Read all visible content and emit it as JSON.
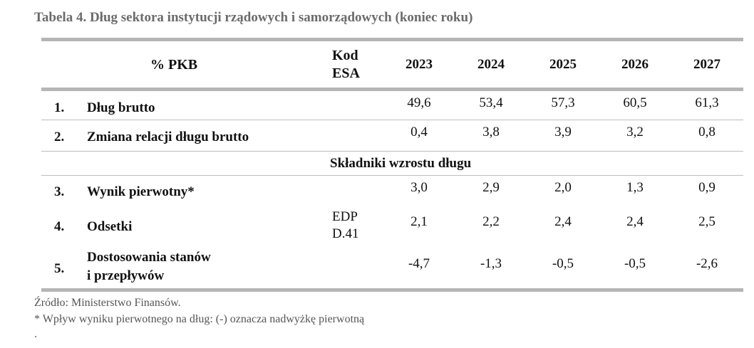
{
  "title": "Tabela 4. Dług sektora instytucji rządowych i samorządowych (koniec roku)",
  "header": {
    "pkb": "% PKB",
    "esa_line1": "Kod",
    "esa_line2": "ESA",
    "years": [
      "2023",
      "2024",
      "2025",
      "2026",
      "2027"
    ]
  },
  "rows": [
    {
      "no": "1.",
      "label": "Dług brutto",
      "esa": "",
      "values": [
        "49,6",
        "53,4",
        "57,3",
        "60,5",
        "61,3"
      ]
    },
    {
      "no": "2.",
      "label": "Zmiana relacji długu brutto",
      "esa": "",
      "values": [
        "0,4",
        "3,8",
        "3,9",
        "3,2",
        "0,8"
      ]
    },
    {
      "no": "3.",
      "label": "Wynik pierwotny*",
      "esa": "",
      "values": [
        "3,0",
        "2,9",
        "2,0",
        "1,3",
        "0,9"
      ]
    },
    {
      "no": "4.",
      "label": "Odsetki",
      "esa_line1": "EDP",
      "esa_line2": "D.41",
      "values": [
        "2,1",
        "2,2",
        "2,4",
        "2,4",
        "2,5"
      ]
    },
    {
      "no": "5.",
      "label_line1": "Dostosowania stanów",
      "label_line2": "i przepływów",
      "esa": "",
      "values": [
        "-4,7",
        "-1,3",
        "-0,5",
        "-0,5",
        "-2,6"
      ]
    }
  ],
  "section_heading": "Składniki wzrostu długu",
  "footnotes": {
    "source": "Źródło: Ministerstwo Finansów.",
    "note": "* Wpływ wyniku pierwotnego na dług: (-) oznacza nadwyżkę pierwotną",
    "dot": "."
  }
}
